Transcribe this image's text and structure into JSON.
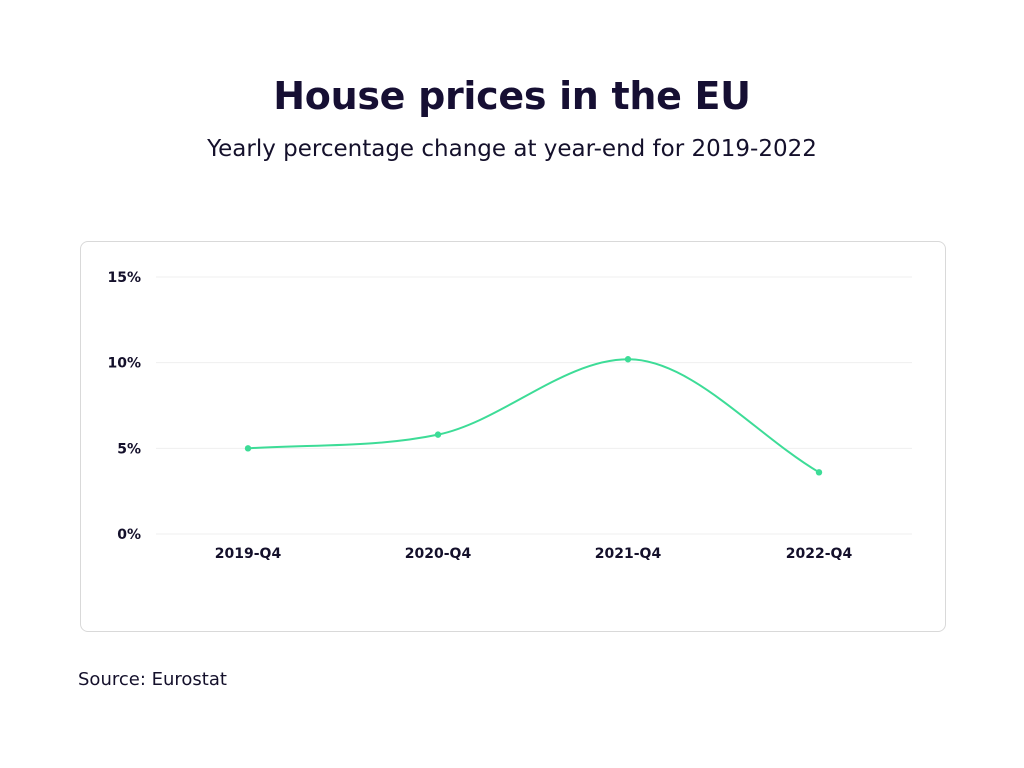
{
  "source": "Source: Eurostat",
  "chart_data": {
    "type": "line",
    "title": "House prices in the EU",
    "subtitle": "Yearly percentage change at year-end for 2019-2022",
    "xlabel": "",
    "ylabel": "",
    "categories": [
      "2019-Q4",
      "2020-Q4",
      "2021-Q4",
      "2022-Q4"
    ],
    "series": [
      {
        "values": [
          5.0,
          5.8,
          10.2,
          3.6
        ],
        "color": "#3ddc97"
      }
    ],
    "ylim": [
      0,
      15
    ],
    "y_ticks": [
      0,
      5,
      10,
      15
    ],
    "y_tick_labels": [
      "0%",
      "5%",
      "10%",
      "15%"
    ],
    "grid": true,
    "legend": "none",
    "smooth": true
  }
}
